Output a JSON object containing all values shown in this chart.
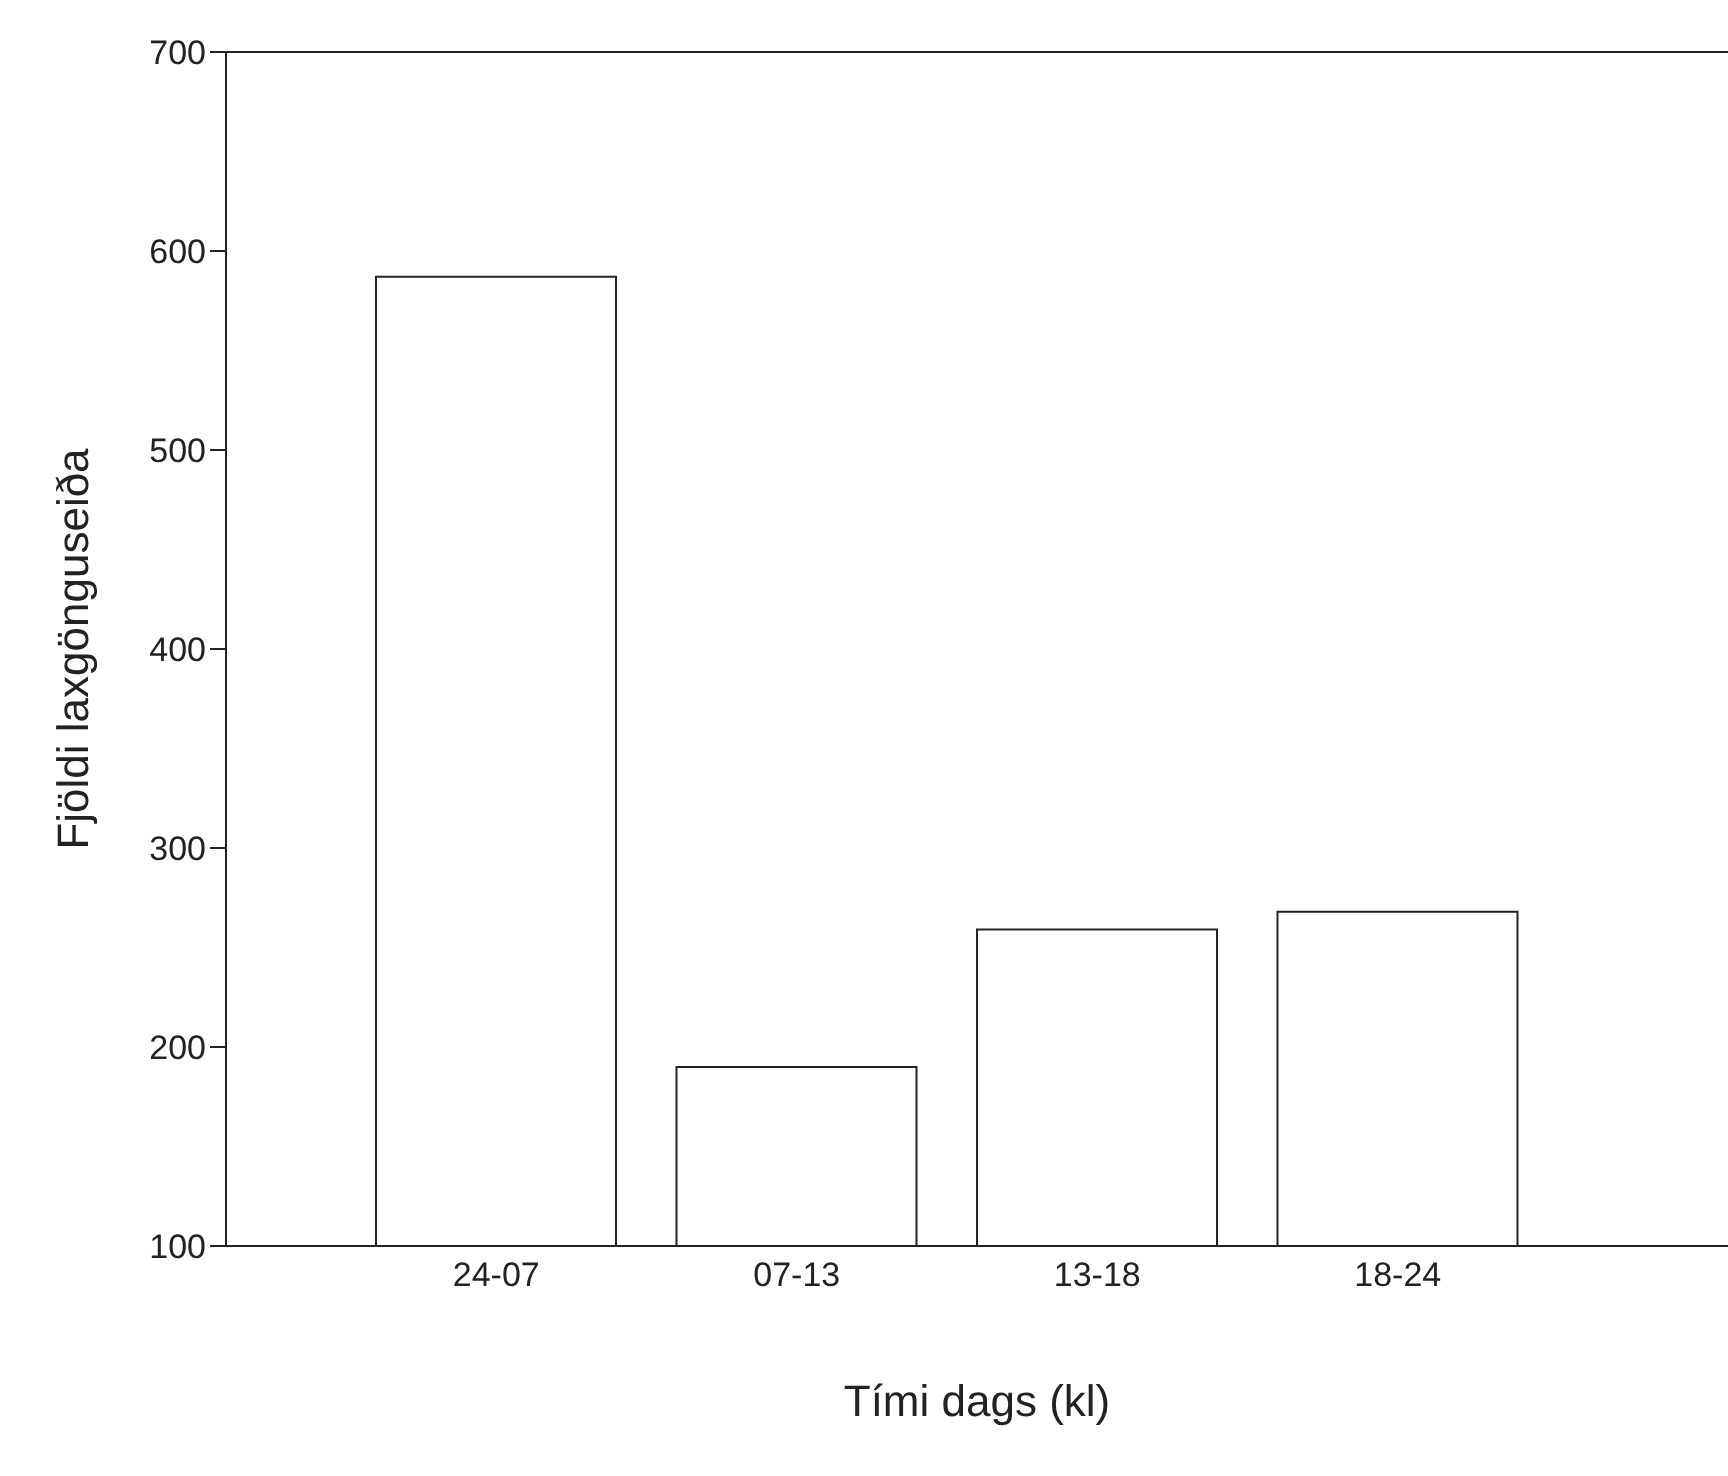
{
  "chart_data": {
    "type": "bar",
    "xlabel": "Tími dags (kl)",
    "ylabel": "Fjöldi laxgönguseiða",
    "categories": [
      "24-07",
      "07-13",
      "13-18",
      "18-24"
    ],
    "values": [
      587,
      190,
      259,
      268
    ],
    "color": "#ffffff",
    "ylim": [
      100,
      700
    ],
    "yticks": [
      100,
      200,
      300,
      400,
      500,
      600,
      700
    ],
    "grid": false
  }
}
